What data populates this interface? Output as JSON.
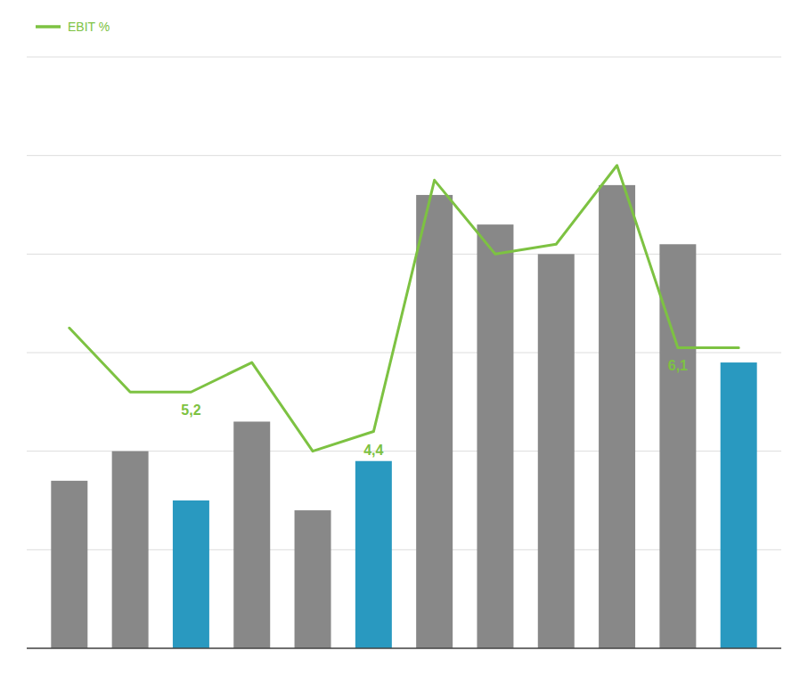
{
  "chart_data": {
    "type": "bar",
    "categories": [
      null,
      null,
      null,
      null,
      null,
      null,
      null,
      null,
      null,
      null,
      null,
      null
    ],
    "series": [
      {
        "type": "bar",
        "colors": [
          "#888888",
          "#888888",
          "#2999c0",
          "#888888",
          "#888888",
          "#2999c0",
          "#888888",
          "#888888",
          "#888888",
          "#888888",
          "#888888",
          "#2999c0"
        ],
        "values": [
          1.7,
          2.0,
          1.5,
          2.3,
          1.4,
          1.9,
          4.6,
          4.3,
          4.0,
          4.7,
          4.1,
          2.9
        ]
      },
      {
        "name": "EBIT %",
        "type": "line",
        "axis": "y2",
        "color": "#7dc242",
        "values": [
          6.5,
          5.2,
          5.2,
          5.8,
          4.0,
          4.4,
          9.5,
          8.0,
          8.2,
          9.8,
          6.1,
          6.1
        ],
        "value_labels": [
          null,
          null,
          "5,2",
          null,
          null,
          "4,4",
          null,
          null,
          null,
          null,
          "6,1",
          null
        ]
      }
    ],
    "ylim": [
      0,
      6
    ],
    "yticks": [
      0,
      1,
      2,
      3,
      4,
      5,
      6
    ],
    "y2lim": [
      0,
      12
    ],
    "grid": true,
    "legend": "top-left",
    "tick_labels": false
  }
}
